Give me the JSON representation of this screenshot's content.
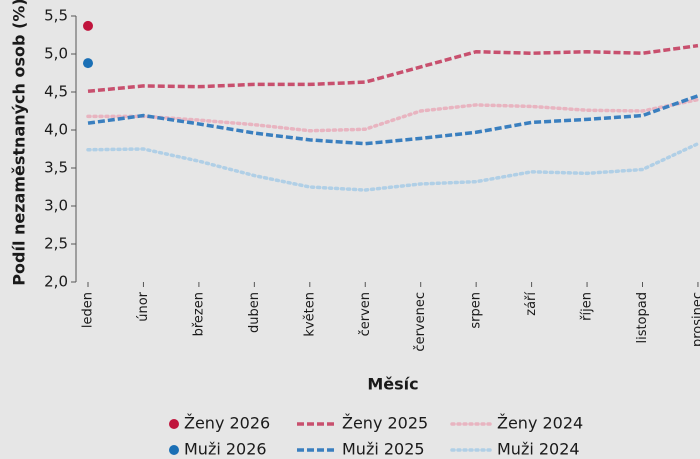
{
  "chart_data": {
    "type": "line",
    "y_label": "Podíl nezaměstnaných osob (%)",
    "x_label": "Měsíc",
    "categories": [
      "leden",
      "únor",
      "březen",
      "duben",
      "květen",
      "červen",
      "červenec",
      "srpen",
      "září",
      "říjen",
      "listopad",
      "prosinec"
    ],
    "series": [
      {
        "name": "Ženy 2026",
        "color": "#c0143c",
        "style": "marker",
        "values": [
          5.37,
          null,
          null,
          null,
          null,
          null,
          null,
          null,
          null,
          null,
          null,
          null
        ]
      },
      {
        "name": "Ženy 2025",
        "color": "#c8506e",
        "style": "dashed",
        "values": [
          4.51,
          4.58,
          4.57,
          4.6,
          4.6,
          4.63,
          4.83,
          5.03,
          5.01,
          5.03,
          5.01,
          5.11
        ]
      },
      {
        "name": "Ženy 2024",
        "color": "#e8b4c0",
        "style": "dotted",
        "values": [
          4.18,
          4.18,
          4.13,
          4.07,
          3.99,
          4.01,
          4.25,
          4.33,
          4.31,
          4.26,
          4.25,
          4.4
        ]
      },
      {
        "name": "Muži 2026",
        "color": "#1a6fb5",
        "style": "marker",
        "values": [
          4.88,
          null,
          null,
          null,
          null,
          null,
          null,
          null,
          null,
          null,
          null,
          null
        ]
      },
      {
        "name": "Muži 2025",
        "color": "#3a7fbf",
        "style": "dashed",
        "values": [
          4.09,
          4.19,
          4.08,
          3.96,
          3.87,
          3.82,
          3.89,
          3.97,
          4.1,
          4.14,
          4.19,
          4.45
        ]
      },
      {
        "name": "Muži 2024",
        "color": "#b0cfe6",
        "style": "dotted",
        "values": [
          3.74,
          3.75,
          3.59,
          3.4,
          3.25,
          3.21,
          3.29,
          3.32,
          3.45,
          3.43,
          3.48,
          3.82
        ]
      }
    ],
    "ylim": [
      2,
      5.5
    ],
    "yticks": [
      {
        "value": 2,
        "label": "2,0"
      },
      {
        "value": 2.5,
        "label": "2,5"
      },
      {
        "value": 3,
        "label": "3,0"
      },
      {
        "value": 3.5,
        "label": "3,5"
      },
      {
        "value": 4,
        "label": "4,0"
      },
      {
        "value": 4.5,
        "label": "4,5"
      },
      {
        "value": 5,
        "label": "5,0"
      },
      {
        "value": 5.5,
        "label": "5,5"
      }
    ],
    "grid": false
  }
}
